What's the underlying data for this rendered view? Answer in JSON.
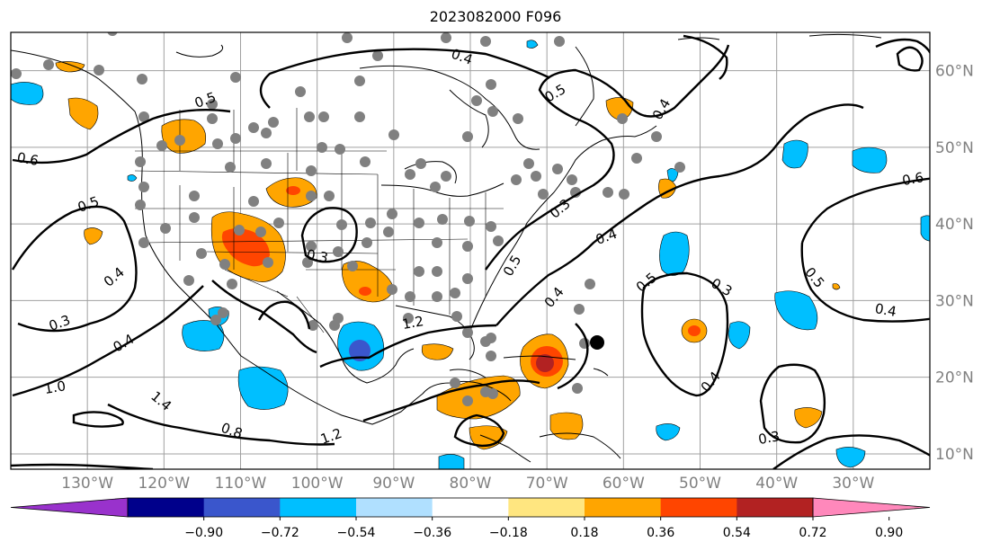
{
  "title": "2023082000 F096",
  "map": {
    "projection": "equirectangular",
    "lon_range": [
      -140,
      -20
    ],
    "lat_range": [
      8,
      65
    ],
    "longitude_ticks": [
      "130°W",
      "120°W",
      "110°W",
      "100°W",
      "90°W",
      "80°W",
      "70°W",
      "60°W",
      "50°W",
      "40°W",
      "30°W"
    ],
    "latitude_ticks": [
      "60°N",
      "50°N",
      "40°N",
      "30°N",
      "20°N",
      "10°N"
    ],
    "contour_labels": [
      "0.5",
      "0.6",
      "0.5",
      "0.4",
      "0.3",
      "0.4",
      "1.0",
      "1.4",
      "0.8",
      "1.2",
      "1.2",
      "0.3",
      "0.4",
      "0.5",
      "0.4",
      "0.4",
      "0.5",
      "0.3",
      "0.5",
      "0.4",
      "0.3",
      "0.6",
      "0.5",
      "0.4",
      "0.3",
      "0.4"
    ],
    "station_color": "#808080",
    "contour_color": "#000000"
  },
  "colorbar": {
    "tick_labels": [
      "−0.90",
      "−0.72",
      "−0.54",
      "−0.36",
      "−0.18",
      "0.18",
      "0.36",
      "0.54",
      "0.72",
      "0.90"
    ],
    "colors": [
      "#9932cc",
      "#00008b",
      "#3a56cc",
      "#00bfff",
      "#b0e0ff",
      "#ffffff",
      "#ffe680",
      "#ffa500",
      "#ff4500",
      "#b22222",
      "#ff88bb"
    ]
  }
}
